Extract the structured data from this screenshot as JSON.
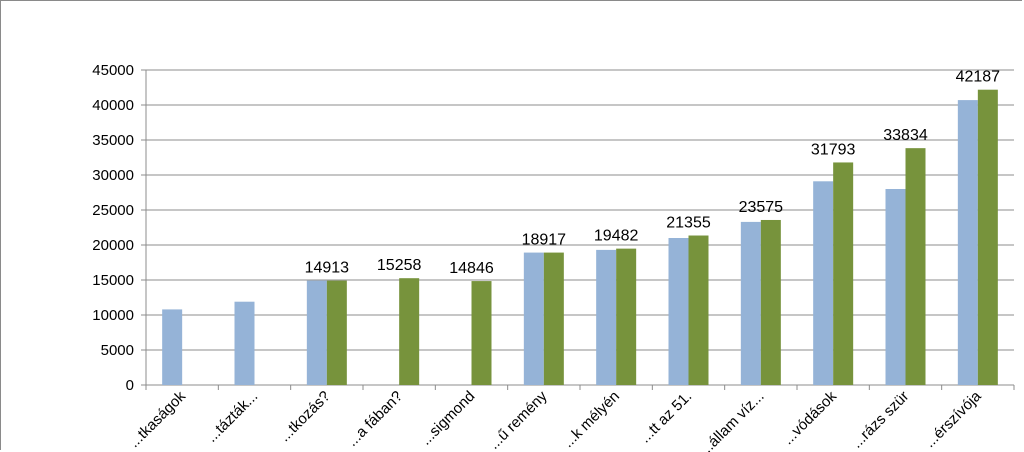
{
  "chart_data": {
    "type": "bar",
    "categories": [
      "...tkaságok",
      "...tázták...",
      "...tkozás?",
      "...a fában?",
      "...sigmond",
      "...ű remény",
      "...k mélyén",
      "...tt az 51.",
      "...állam víz...",
      "...vódások",
      "...rázs szür",
      "...érszívója"
    ],
    "series": [
      {
        "color": "#95b3d7",
        "values": [
          10800,
          11900,
          14913,
          null,
          null,
          18917,
          19300,
          21000,
          23300,
          29100,
          28000,
          40700
        ]
      },
      {
        "color": "#77933c",
        "values": [
          null,
          null,
          14913,
          15258,
          14846,
          18917,
          19482,
          21355,
          23575,
          31793,
          33834,
          42187
        ]
      }
    ],
    "data_labels": [
      "",
      "",
      "14913",
      "15258",
      "14846",
      "18917",
      "19482",
      "21355",
      "23575",
      "31793",
      "33834",
      "42187"
    ],
    "yticks": [
      "0",
      "5000",
      "10000",
      "15000",
      "20000",
      "25000",
      "30000",
      "35000",
      "40000",
      "45000"
    ],
    "ylim": [
      0,
      45000
    ],
    "grid": true,
    "legend": "none"
  }
}
